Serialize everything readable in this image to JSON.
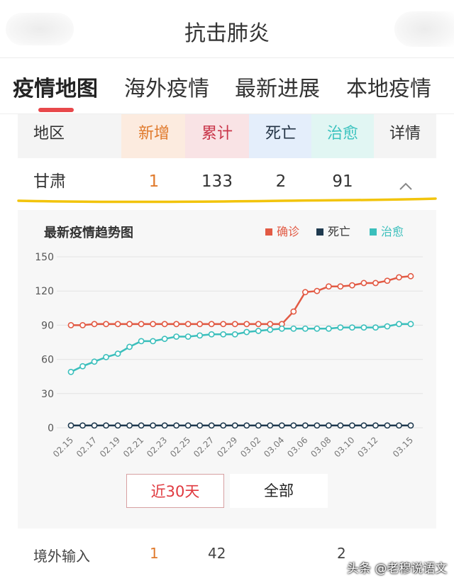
{
  "header": {
    "title": "抗击肺炎"
  },
  "tabs": [
    {
      "label": "疫情地图",
      "active": true
    },
    {
      "label": "海外疫情"
    },
    {
      "label": "最新进展"
    },
    {
      "label": "本地疫情"
    }
  ],
  "table": {
    "headers": {
      "region": "地区",
      "new": "新增",
      "total": "累计",
      "death": "死亡",
      "cured": "治愈",
      "detail": "详情"
    },
    "row": {
      "region": "甘肃",
      "new": "1",
      "total": "133",
      "death": "2",
      "cured": "91",
      "chevron_icon": "chevron-up-icon"
    },
    "highlight_color": "#f2c40c"
  },
  "chart_data": {
    "type": "line",
    "title": "最新疫情趋势图",
    "legend": {
      "position": "top-right"
    },
    "ylim": [
      0,
      150
    ],
    "yticks": [
      0,
      30,
      60,
      90,
      120,
      150
    ],
    "grid": true,
    "x": [
      "02.15",
      "02.16",
      "02.17",
      "02.18",
      "02.19",
      "02.20",
      "02.21",
      "02.22",
      "02.23",
      "02.24",
      "02.25",
      "02.26",
      "02.27",
      "02.28",
      "02.29",
      "03.01",
      "03.02",
      "03.03",
      "03.04",
      "03.05",
      "03.06",
      "03.07",
      "03.08",
      "03.09",
      "03.10",
      "03.11",
      "03.12",
      "03.13",
      "03.14",
      "03.15"
    ],
    "xticklabels": [
      "02.15",
      "02.17",
      "02.19",
      "02.21",
      "02.23",
      "02.25",
      "02.27",
      "02.29",
      "03.02",
      "03.04",
      "03.06",
      "03.08",
      "03.10",
      "03.12",
      "03.15"
    ],
    "series": [
      {
        "name": "确诊",
        "color": "#e25a44",
        "values": [
          90,
          90,
          91,
          91,
          91,
          91,
          91,
          91,
          91,
          91,
          91,
          91,
          91,
          91,
          91,
          91,
          91,
          91,
          91,
          102,
          119,
          120,
          124,
          124,
          125,
          127,
          127,
          129,
          132,
          133
        ]
      },
      {
        "name": "死亡",
        "color": "#1f3a4f",
        "values": [
          2,
          2,
          2,
          2,
          2,
          2,
          2,
          2,
          2,
          2,
          2,
          2,
          2,
          2,
          2,
          2,
          2,
          2,
          2,
          2,
          2,
          2,
          2,
          2,
          2,
          2,
          2,
          2,
          2,
          2
        ]
      },
      {
        "name": "治愈",
        "color": "#3bbfbc",
        "values": [
          49,
          54,
          58,
          62,
          65,
          71,
          76,
          76,
          78,
          80,
          80,
          81,
          82,
          82,
          82,
          84,
          85,
          86,
          87,
          87,
          87,
          87,
          87,
          88,
          88,
          88,
          88,
          89,
          91,
          91
        ]
      }
    ]
  },
  "range_buttons": {
    "recent30": "近30天",
    "all": "全部"
  },
  "imported": {
    "label": "境外输入",
    "new": "1",
    "total": "42",
    "cured": "2"
  },
  "watermark": "头条 @老穆说语文"
}
